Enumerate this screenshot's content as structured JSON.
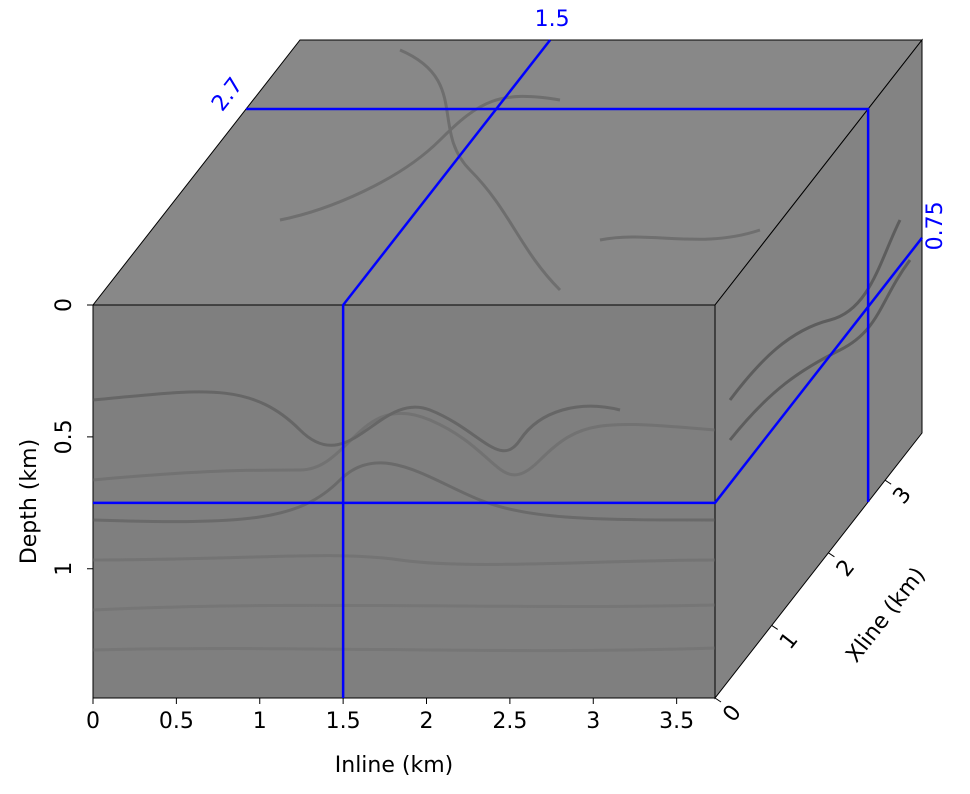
{
  "chart_data": {
    "type": "cube",
    "x_label": "Inline (km)",
    "y_label": "Depth (km)",
    "z_label": "Xline (km)",
    "xlim": [
      0,
      3.73
    ],
    "xticks": [
      0,
      0.5,
      1,
      1.5,
      2,
      2.5,
      3,
      3.5
    ],
    "ylim": [
      0,
      1.49
    ],
    "yticks": [
      0,
      0.5,
      1
    ],
    "zlim": [
      0,
      3.65
    ],
    "zticks": [
      0,
      1,
      2,
      3
    ],
    "slices": {
      "inline": 1.5,
      "xline": 2.7,
      "depth": 0.75
    },
    "slice_color": "#0000ff",
    "face_color": "#7f7f7f"
  }
}
